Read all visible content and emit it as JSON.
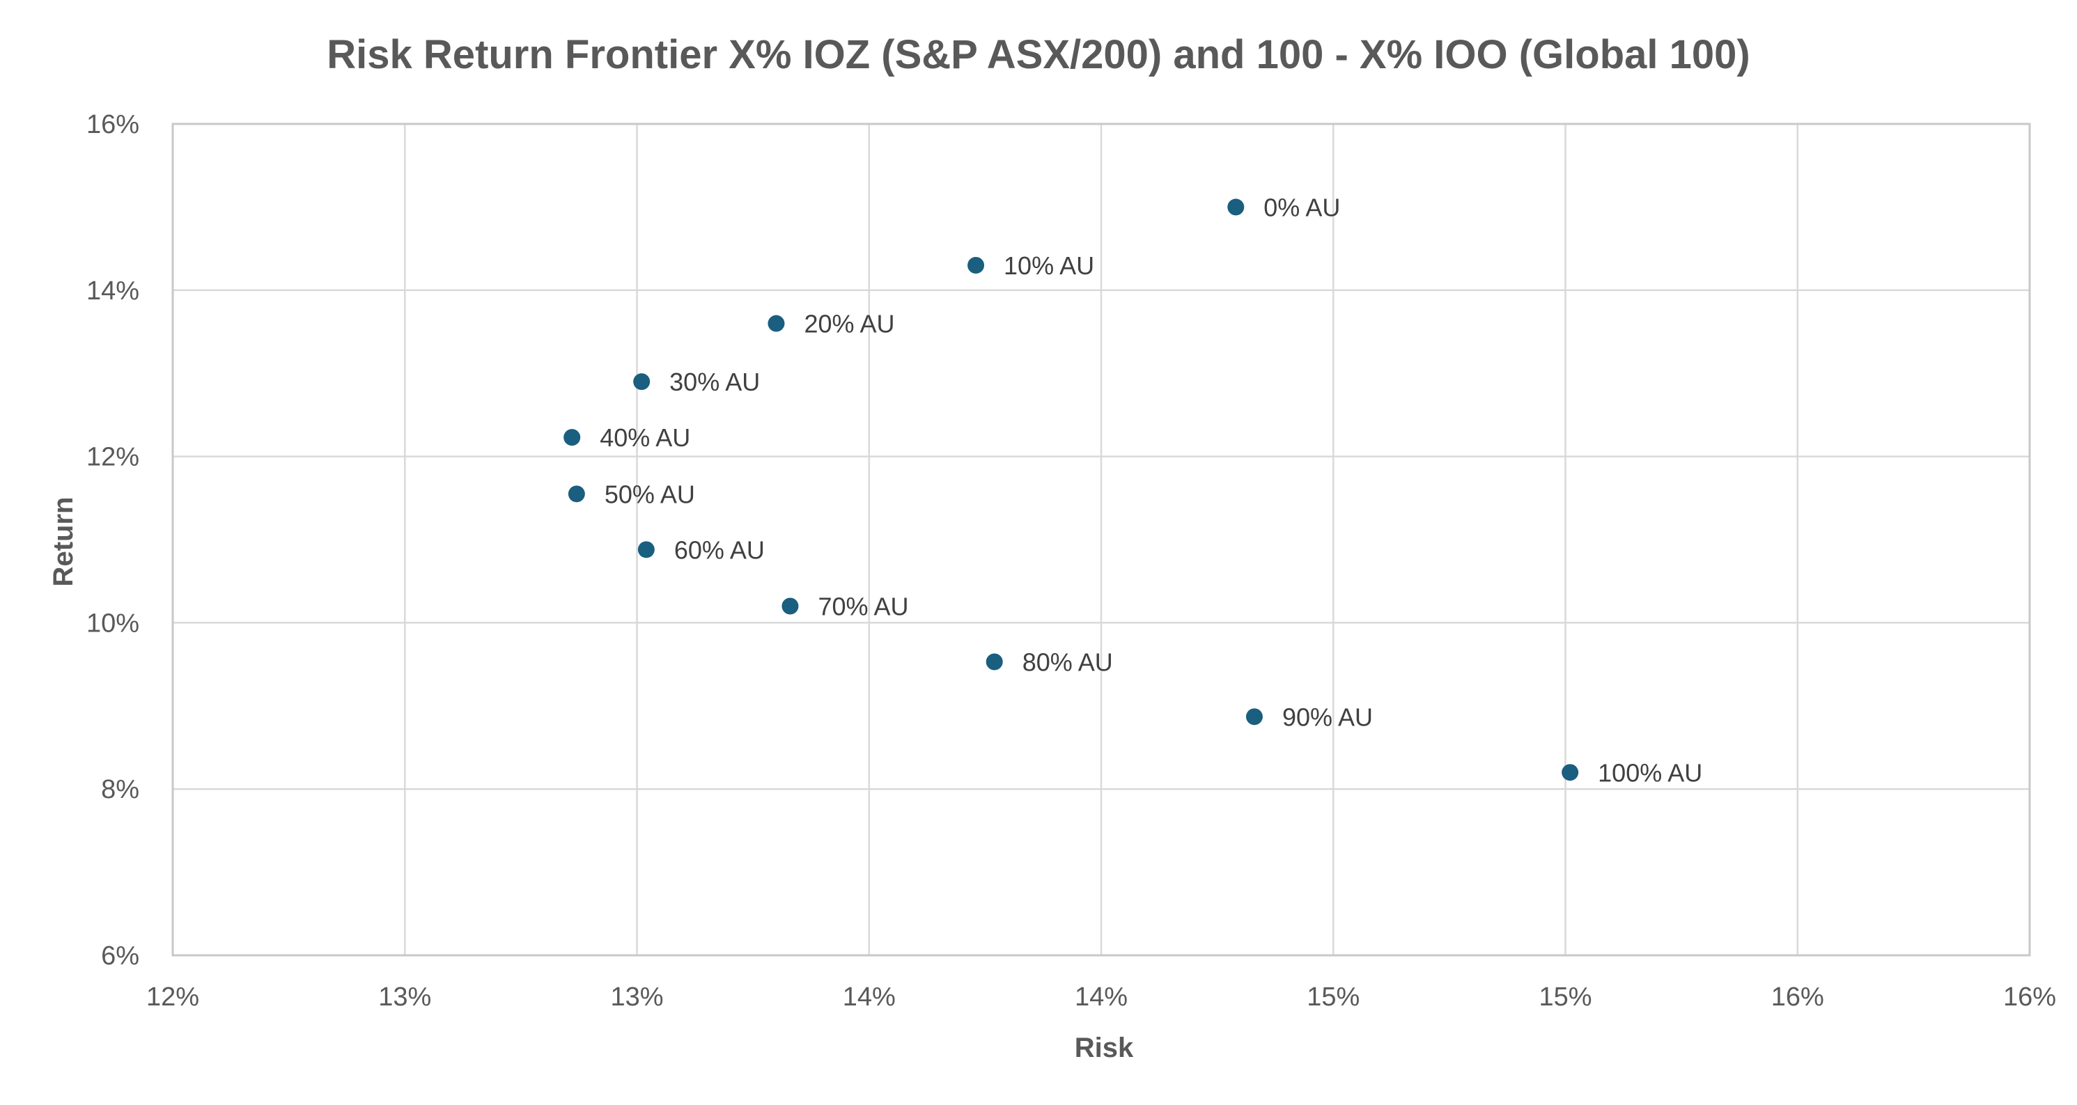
{
  "chart_data": {
    "type": "scatter",
    "title": "Risk Return Frontier X% IOZ (S&P ASX/200) and 100 - X% IOO (Global 100)",
    "xlabel": "Risk",
    "ylabel": "Return",
    "xlim": [
      0.12,
      0.16
    ],
    "ylim": [
      0.06,
      0.16
    ],
    "xticks": [
      {
        "value": 0.12,
        "label": "12%"
      },
      {
        "value": 0.125,
        "label": "13%"
      },
      {
        "value": 0.13,
        "label": "13%"
      },
      {
        "value": 0.135,
        "label": "14%"
      },
      {
        "value": 0.14,
        "label": "14%"
      },
      {
        "value": 0.145,
        "label": "15%"
      },
      {
        "value": 0.15,
        "label": "15%"
      },
      {
        "value": 0.155,
        "label": "16%"
      },
      {
        "value": 0.16,
        "label": "16%"
      }
    ],
    "yticks": [
      {
        "value": 0.06,
        "label": "6%"
      },
      {
        "value": 0.08,
        "label": "8%"
      },
      {
        "value": 0.1,
        "label": "10%"
      },
      {
        "value": 0.12,
        "label": "12%"
      },
      {
        "value": 0.14,
        "label": "14%"
      },
      {
        "value": 0.16,
        "label": "16%"
      }
    ],
    "grid": true,
    "marker_color": "#1a5e80",
    "points": [
      {
        "label": "0% AU",
        "x": 0.1429,
        "y": 0.15
      },
      {
        "label": "10% AU",
        "x": 0.1373,
        "y": 0.143
      },
      {
        "label": "20% AU",
        "x": 0.133,
        "y": 0.136
      },
      {
        "label": "30% AU",
        "x": 0.1301,
        "y": 0.129
      },
      {
        "label": "40% AU",
        "x": 0.1286,
        "y": 0.1223
      },
      {
        "label": "50% AU",
        "x": 0.1287,
        "y": 0.1155
      },
      {
        "label": "60% AU",
        "x": 0.1302,
        "y": 0.1088
      },
      {
        "label": "70% AU",
        "x": 0.1333,
        "y": 0.102
      },
      {
        "label": "80% AU",
        "x": 0.1377,
        "y": 0.0953
      },
      {
        "label": "90% AU",
        "x": 0.1433,
        "y": 0.0887
      },
      {
        "label": "100% AU",
        "x": 0.1501,
        "y": 0.082
      }
    ]
  }
}
